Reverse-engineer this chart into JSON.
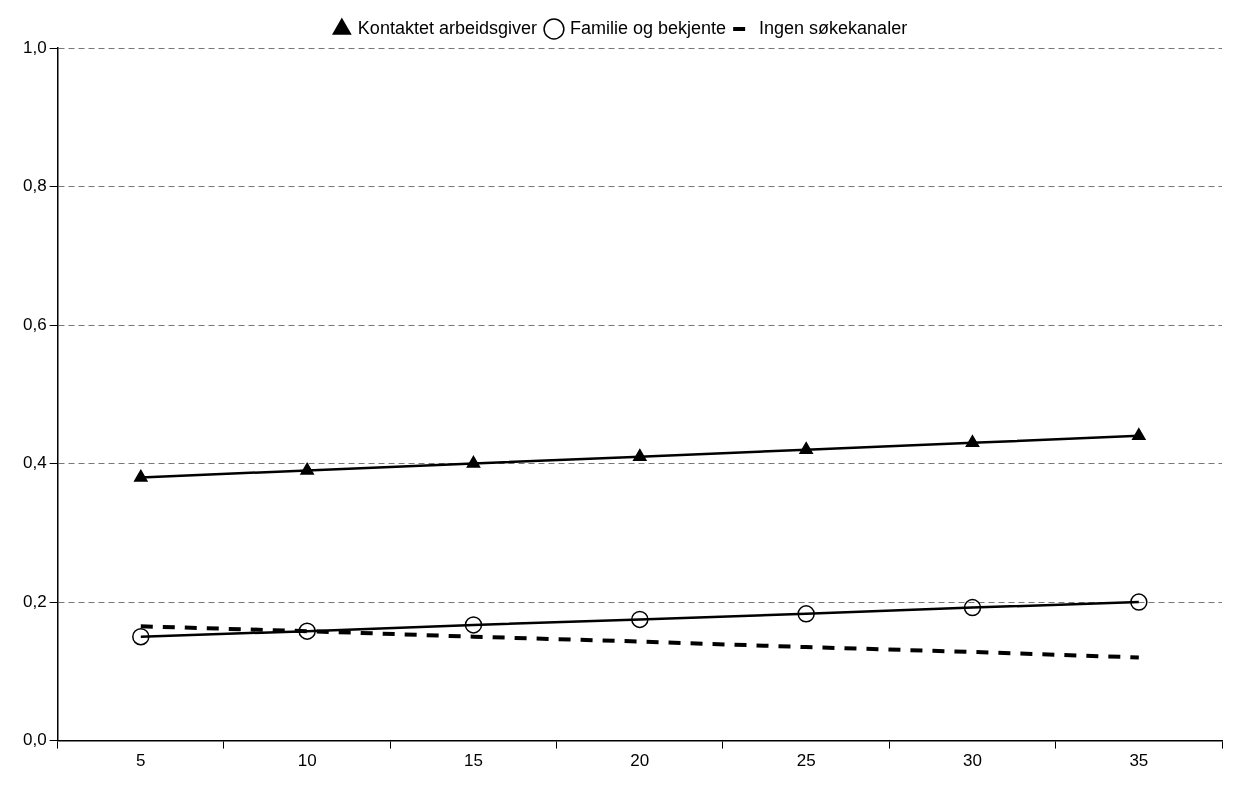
{
  "chart_data": {
    "type": "line",
    "categories": [
      "5",
      "10",
      "15",
      "20",
      "25",
      "30",
      "35"
    ],
    "series": [
      {
        "name": "Kontaktet arbeidsgiver",
        "color": "#000000",
        "marker": "triangle",
        "line_style": "solid",
        "values": [
          0.38,
          0.39,
          0.4,
          0.41,
          0.42,
          0.43,
          0.44
        ]
      },
      {
        "name": "Familie og bekjente",
        "color": "#000000",
        "marker": "circle",
        "line_style": "solid",
        "values": [
          0.15,
          0.158,
          0.167,
          0.175,
          0.183,
          0.192,
          0.2
        ]
      },
      {
        "name": "Ingen søkekanaler",
        "color": "#000000",
        "marker": "none",
        "line_style": "dashed",
        "values": [
          0.165,
          0.158,
          0.15,
          0.143,
          0.135,
          0.128,
          0.12
        ]
      }
    ],
    "ylim": [
      0,
      1
    ],
    "yticks": [
      {
        "value": 0,
        "label": "0,0"
      },
      {
        "value": 0.2,
        "label": "0,2"
      },
      {
        "value": 0.4,
        "label": "0,4"
      },
      {
        "value": 0.6,
        "label": "0,6"
      },
      {
        "value": 0.8,
        "label": "0,8"
      },
      {
        "value": 1,
        "label": "1,0"
      }
    ],
    "grid": "y",
    "legend": "top"
  }
}
